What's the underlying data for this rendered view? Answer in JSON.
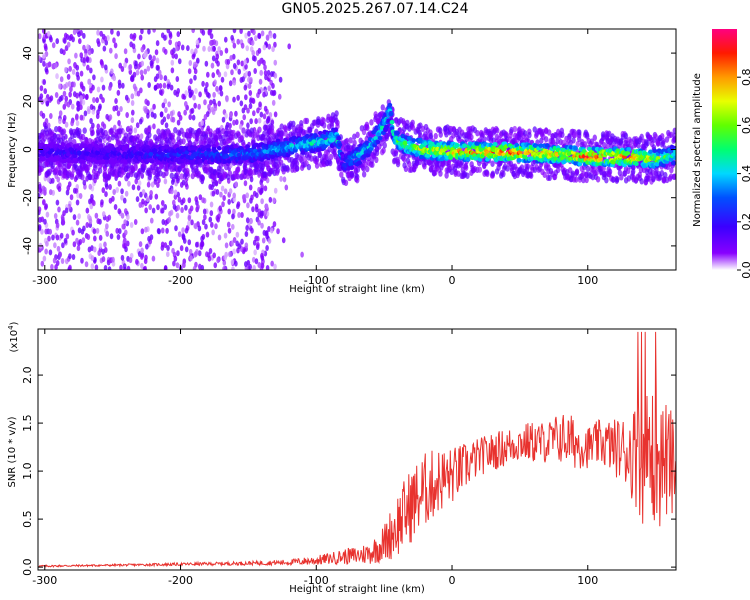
{
  "title": "GN05.2025.267.07.14.C24",
  "colors": {
    "snr_line": "#e8322e"
  },
  "chart_data": [
    {
      "type": "heatmap",
      "xlabel": "Height of straight line (km)",
      "ylabel": "Frequency (Hz)",
      "xlim": [
        -305,
        165
      ],
      "ylim": [
        -50,
        50
      ],
      "x_ticks": [
        "-300",
        "-200",
        "-100",
        "0",
        "100"
      ],
      "x_tick_values": [
        -300,
        -200,
        -100,
        0,
        100
      ],
      "y_ticks": [
        "-40",
        "-20",
        "0",
        "20",
        "40"
      ],
      "y_tick_values": [
        -40,
        -20,
        0,
        20,
        40
      ],
      "colorbar": {
        "label": "Normalized spectral amplitude",
        "ticks": [
          "0.0",
          "0.2",
          "0.4",
          "0.6",
          "0.8"
        ],
        "tick_values": [
          0,
          0.2,
          0.4,
          0.6,
          0.8
        ],
        "range": [
          0,
          1
        ],
        "colormap": "rainbow (purple-blue-cyan-green-yellow-red-magenta)"
      },
      "ridge": {
        "x": [
          -305,
          -250,
          -200,
          -150,
          -120,
          -100,
          -85,
          -80,
          -70,
          -60,
          -50,
          -46,
          -42,
          -35,
          -20,
          0,
          40,
          80,
          100,
          130,
          150,
          165
        ],
        "freq": [
          -1,
          -2,
          -2,
          -2,
          1,
          3,
          5,
          -6,
          -3,
          2,
          10,
          16,
          4,
          2,
          0,
          -1,
          -1,
          -2,
          -3,
          -3,
          -4,
          -2
        ],
        "amplitude": [
          0.2,
          0.22,
          0.28,
          0.35,
          0.45,
          0.5,
          0.5,
          0.3,
          0.45,
          0.5,
          0.5,
          0.5,
          0.55,
          0.65,
          0.75,
          0.85,
          0.95,
          0.8,
          0.95,
          0.9,
          0.7,
          0.5
        ]
      },
      "noise_region_x": [
        -305,
        -130
      ]
    },
    {
      "type": "line",
      "xlabel": "Height of straight line (km)",
      "ylabel": "SNR (10 * v/v)",
      "multiplier": "(x10",
      "multiplier_exp": "4",
      "xlim": [
        -305,
        165
      ],
      "ylim": [
        -0.03,
        2.48
      ],
      "x_ticks": [
        "-300",
        "-200",
        "-100",
        "0",
        "100"
      ],
      "x_tick_values": [
        -300,
        -200,
        -100,
        0,
        100
      ],
      "y_ticks": [
        "0.0",
        "0.5",
        "1.0",
        "1.5",
        "2.0"
      ],
      "y_tick_values": [
        0,
        0.5,
        1.0,
        1.5,
        2.0
      ],
      "series": [
        {
          "x": [
            -305,
            -250,
            -200,
            -150,
            -120,
            -110,
            -100,
            -90,
            -80,
            -70,
            -60,
            -50,
            -40,
            -30,
            -20,
            -10,
            0,
            10,
            20,
            30,
            40,
            50,
            60,
            70,
            80,
            90,
            100,
            110,
            120,
            130,
            140,
            150,
            160,
            165
          ],
          "base": [
            0.01,
            0.02,
            0.03,
            0.04,
            0.05,
            0.06,
            0.07,
            0.09,
            0.11,
            0.12,
            0.15,
            0.25,
            0.45,
            0.65,
            0.8,
            0.9,
            0.95,
            1.05,
            1.15,
            1.2,
            1.25,
            1.3,
            1.3,
            1.3,
            1.35,
            1.3,
            1.25,
            1.3,
            1.25,
            1.2,
            1.15,
            1.15,
            1.1,
            1.0
          ],
          "spread": [
            0.01,
            0.01,
            0.015,
            0.02,
            0.03,
            0.04,
            0.05,
            0.06,
            0.08,
            0.1,
            0.12,
            0.2,
            0.35,
            0.4,
            0.4,
            0.35,
            0.3,
            0.25,
            0.2,
            0.2,
            0.2,
            0.2,
            0.22,
            0.22,
            0.28,
            0.28,
            0.22,
            0.25,
            0.3,
            0.4,
            0.7,
            0.8,
            0.6,
            0.5
          ]
        }
      ]
    }
  ]
}
